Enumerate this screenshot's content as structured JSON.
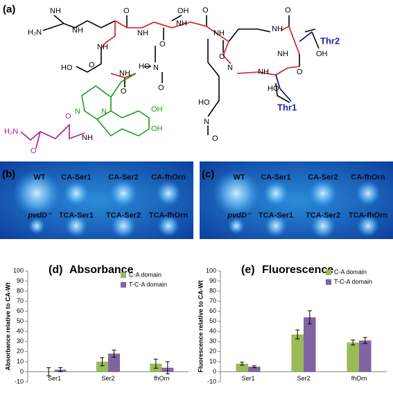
{
  "panels": {
    "a": "(a)",
    "b": "(b)",
    "c": "(c)"
  },
  "structure": {
    "labels": [
      "NH",
      "H₂N",
      "NH",
      "OH",
      "O",
      "NH",
      "O",
      "NH",
      "O",
      "NH",
      "O",
      "NH",
      "O",
      "NH",
      "OH",
      "Thr2",
      "O",
      "NH",
      "N",
      "Thr1",
      "HO",
      "NH",
      "O",
      "HO",
      "NH",
      "O",
      "HO",
      "N",
      "O",
      "N",
      "HO",
      "O",
      "N",
      "N",
      "OH",
      "OH",
      "NH",
      "H₂N",
      "O",
      "O"
    ]
  },
  "plates": [
    {
      "labels": [
        "WT",
        "CA-Ser1",
        "CA-Ser2",
        "CA-fhOrn",
        "pvdD⁻",
        "TCA-Ser1",
        "TCA-Ser2",
        "TCA-fhOrn"
      ]
    },
    {
      "labels": [
        "WT",
        "CA-Ser1",
        "CA-Ser2",
        "CA-fhOrn",
        "pvdD⁻",
        "TCA-Ser1",
        "TCA-Ser2",
        "TCA-fhOrn"
      ]
    }
  ],
  "chart_data": [
    {
      "type": "bar",
      "panel": "(d)",
      "title": "Absorbance",
      "y_label": "Absorbance relative to CA-Wt",
      "categories": [
        "Ser1",
        "Ser2",
        "fhOrn"
      ],
      "series": [
        {
          "name": "C-A domain",
          "color": "#9bbb59",
          "values": [
            0,
            10,
            8
          ],
          "errors": [
            4,
            4,
            4.5
          ]
        },
        {
          "name": "T-C-A domain",
          "color": "#8064a2",
          "values": [
            2,
            18,
            4
          ],
          "errors": [
            2,
            3.5,
            6
          ]
        }
      ],
      "ylim": [
        -10,
        100
      ],
      "yticks": [
        -10,
        0,
        10,
        20,
        30,
        40,
        50,
        60,
        70,
        80,
        90,
        100
      ]
    },
    {
      "type": "bar",
      "panel": "(e)",
      "title": "Fluorescence",
      "y_label": "Fluorescence relative to CA-Wt",
      "categories": [
        "Ser1",
        "Ser2",
        "fhOrn"
      ],
      "series": [
        {
          "name": "C-A domain",
          "color": "#9bbb59",
          "values": [
            8,
            37,
            29
          ],
          "errors": [
            1.5,
            4.5,
            2.5
          ]
        },
        {
          "name": "T-C-A domain",
          "color": "#8064a2",
          "values": [
            5,
            54,
            31
          ],
          "errors": [
            1,
            6.5,
            3
          ]
        }
      ],
      "ylim": [
        -10,
        100
      ],
      "yticks": [
        -10,
        0,
        10,
        20,
        30,
        40,
        50,
        60,
        70,
        80,
        90,
        100
      ]
    }
  ]
}
